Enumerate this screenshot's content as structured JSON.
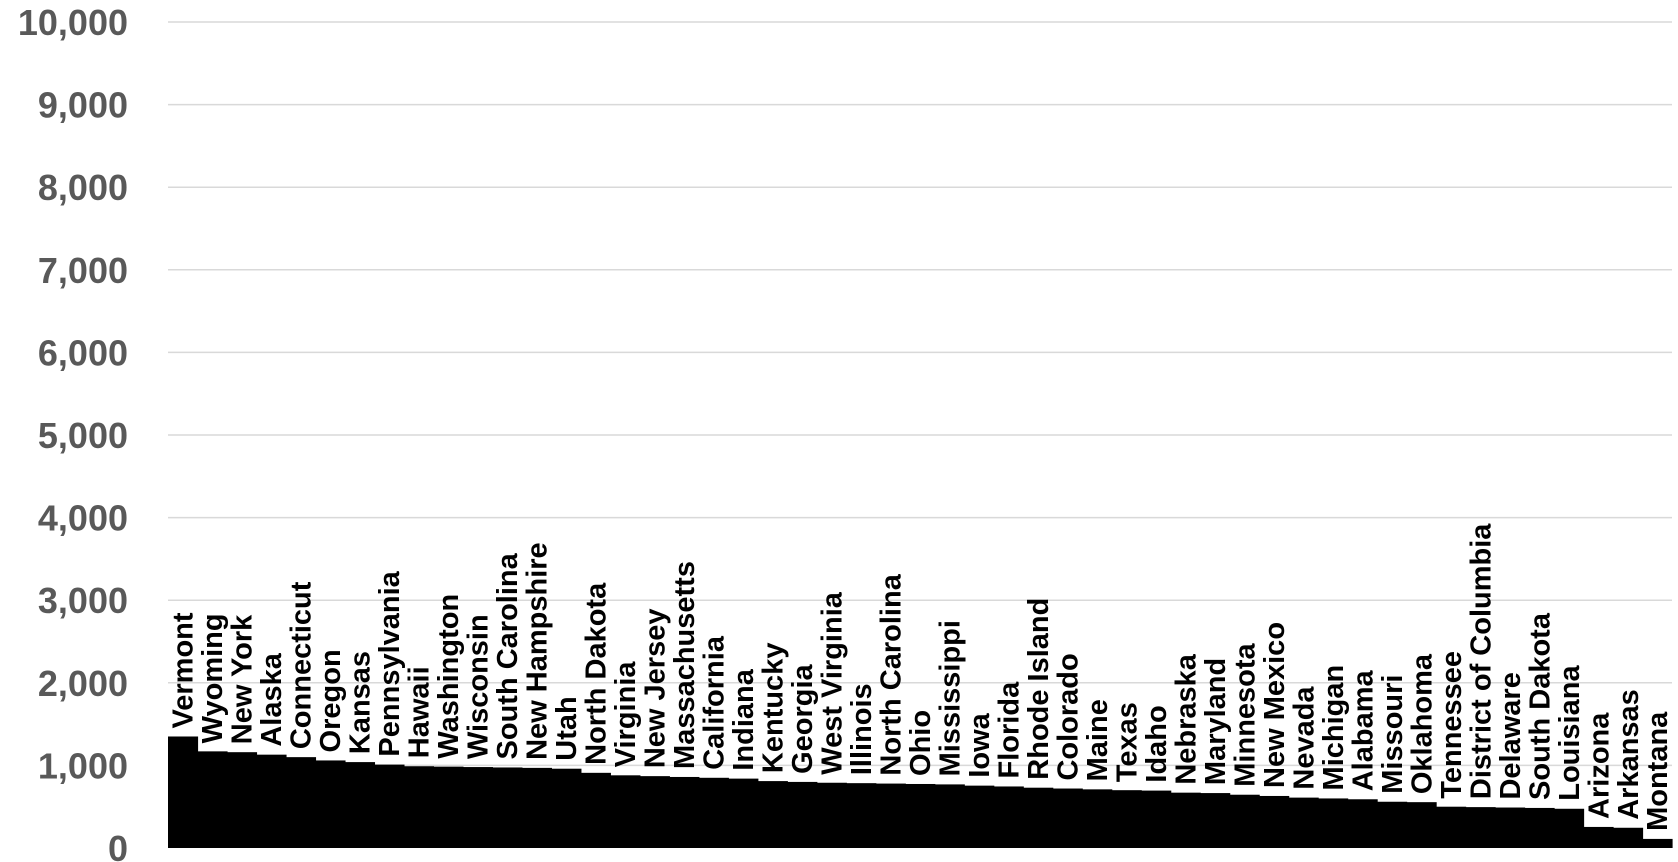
{
  "chart_data": {
    "type": "bar",
    "title": "",
    "xlabel": "",
    "ylabel": "",
    "ylim": [
      0,
      10000
    ],
    "yticks": [
      0,
      1000,
      2000,
      3000,
      4000,
      5000,
      6000,
      7000,
      8000,
      9000,
      10000
    ],
    "ytick_labels": [
      "0",
      "1,000",
      "2,000",
      "3,000",
      "4,000",
      "5,000",
      "6,000",
      "7,000",
      "8,000",
      "9,000",
      "10,000"
    ],
    "grid": true,
    "legend": "none",
    "bar_color": "#000000",
    "grid_color": "#d9d9d9",
    "tick_color": "#595959",
    "categories": [
      "Vermont",
      "Wyoming",
      "New York",
      "Alaska",
      "Connecticut",
      "Oregon",
      "Kansas",
      "Pennsylvania",
      "Hawaii",
      "Washington",
      "Wisconsin",
      "South Carolina",
      "New Hampshire",
      "Utah",
      "North Dakota",
      "Virginia",
      "New Jersey",
      "Massachusetts",
      "California",
      "Indiana",
      "Kentucky",
      "Georgia",
      "West Virginia",
      "Illinois",
      "North Carolina",
      "Ohio",
      "Mississippi",
      "Iowa",
      "Florida",
      "Rhode Island",
      "Colorado",
      "Maine",
      "Texas",
      "Idaho",
      "Nebraska",
      "Maryland",
      "Minnesota",
      "New Mexico",
      "Nevada",
      "Michigan",
      "Alabama",
      "Missouri",
      "Oklahoma",
      "Tennessee",
      "District of Columbia",
      "Delaware",
      "South Dakota",
      "Louisiana",
      "Arizona",
      "Arkansas",
      "Montana"
    ],
    "values": [
      1350,
      1170,
      1160,
      1130,
      1100,
      1060,
      1040,
      1010,
      990,
      985,
      980,
      975,
      970,
      960,
      910,
      880,
      870,
      860,
      850,
      840,
      810,
      800,
      790,
      785,
      780,
      775,
      770,
      755,
      745,
      730,
      720,
      710,
      700,
      695,
      670,
      665,
      645,
      630,
      610,
      600,
      590,
      560,
      555,
      500,
      495,
      490,
      485,
      475,
      255,
      245,
      110
    ]
  }
}
